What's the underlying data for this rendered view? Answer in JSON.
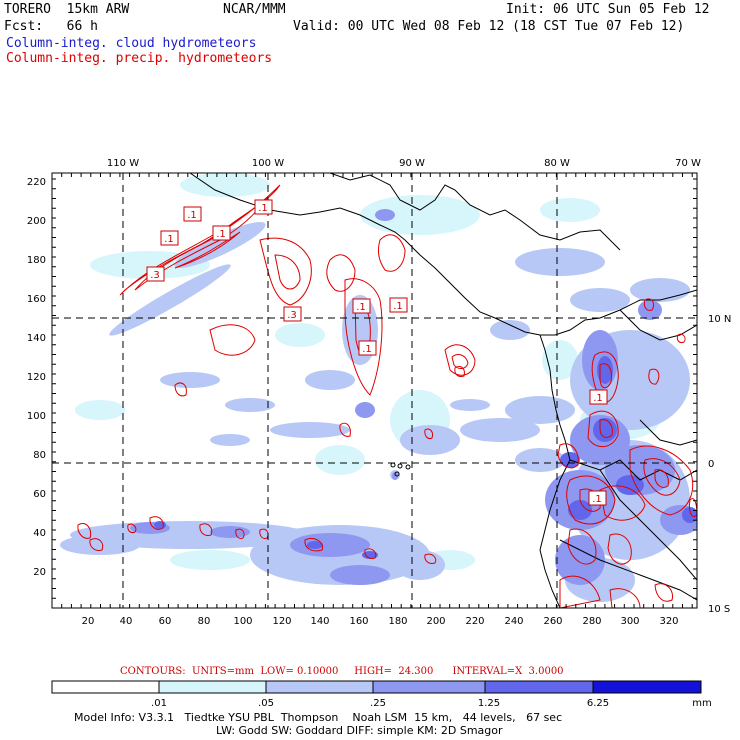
{
  "header": {
    "model": "TORERO  15km ARW",
    "org": "NCAR/MMM",
    "init": "Init: 06 UTC Sun 05 Feb 12",
    "fcst": "Fcst:   66 h",
    "valid": "Valid: 00 UTC Wed 08 Feb 12 (18 CST Tue 07 Feb 12)",
    "legend_cloud": "Column-integ. cloud hydrometeors",
    "legend_precip": "Column-integ. precip. hydrometeors"
  },
  "colors": {
    "cloud_text": "#1a1acc",
    "precip_text": "#dd0000",
    "contour": "#e00000",
    "fill_1": "#d6f6fb",
    "fill_2": "#b8c8f6",
    "fill_3": "#8f98f1",
    "fill_4": "#6266ea",
    "fill_5": "#3436e4",
    "fill_6": "#1412d8"
  },
  "map": {
    "top_lon_labels": [
      "110 W",
      "100 W",
      "90 W",
      "80 W",
      "70 W"
    ],
    "right_lat_labels": [
      "10 N",
      "0",
      "10 S"
    ],
    "y_ticks": [
      "220",
      "200",
      "180",
      "160",
      "140",
      "120",
      "100",
      "80",
      "60",
      "40",
      "20"
    ],
    "x_ticks": [
      "20",
      "40",
      "60",
      "80",
      "100",
      "120",
      "140",
      "160",
      "180",
      "200",
      "220",
      "240",
      "260",
      "280",
      "300",
      "320"
    ],
    "contour_labels": [
      ".1",
      ".1",
      ".1",
      ".1",
      ".3",
      ".1",
      ".1",
      ".3",
      ".1",
      ".1",
      ".1"
    ]
  },
  "contours_line": "CONTOURS:  UNITS=mm  LOW= 0.10000     HIGH=  24.300      INTERVAL=X  3.0000",
  "colorbar": {
    "labels": [
      ".01",
      ".05",
      ".25",
      "1.25",
      "6.25"
    ],
    "unit": "mm"
  },
  "footer": {
    "line1": "Model Info: V3.3.1   Tiedtke YSU PBL  Thompson    Noah LSM  15 km,   44 levels,   67 sec",
    "line2": "LW: Godd SW: Goddard DIFF: simple KM: 2D Smagor"
  }
}
